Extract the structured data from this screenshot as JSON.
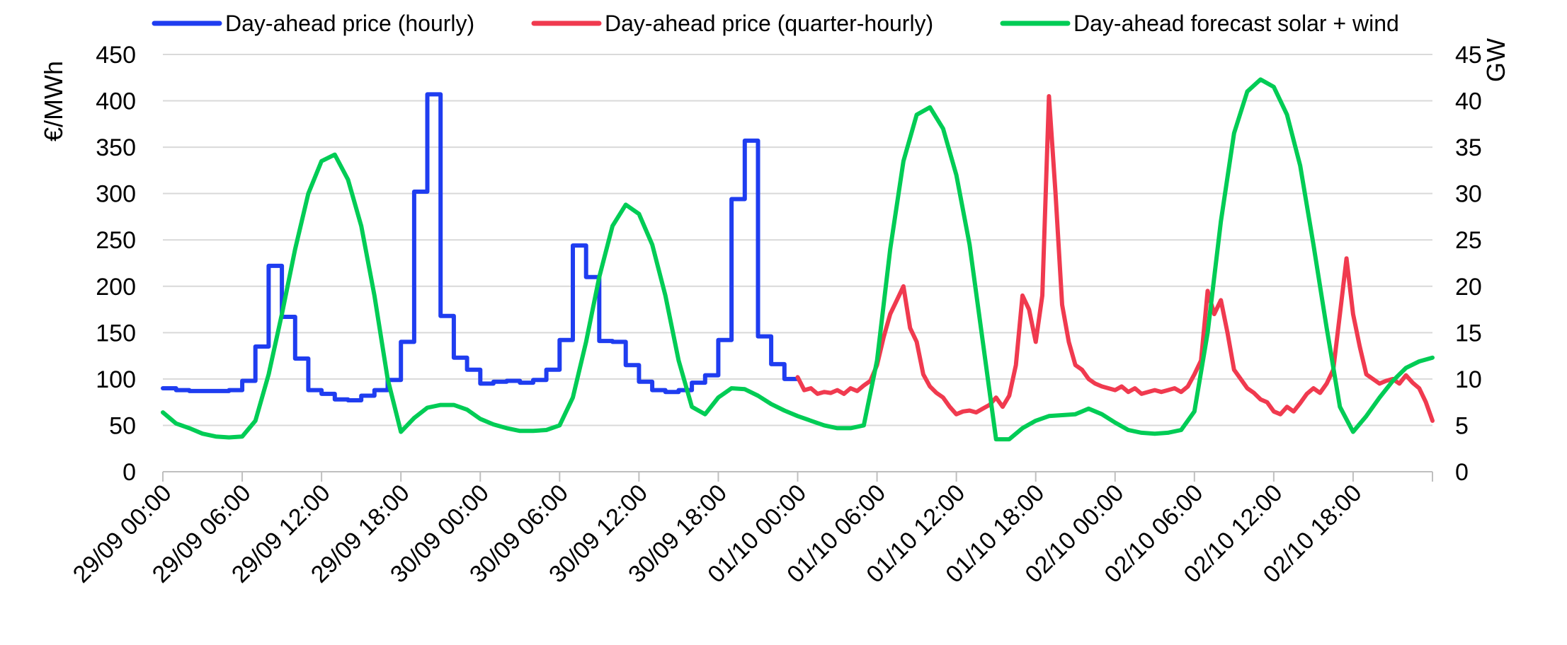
{
  "chart_data": {
    "type": "line",
    "legend_position": "top",
    "grid": true,
    "y_left": {
      "label": "€/MWh",
      "range": [
        0,
        450
      ],
      "ticks": [
        "0",
        "50",
        "100",
        "150",
        "200",
        "250",
        "300",
        "350",
        "400",
        "450"
      ]
    },
    "y_right": {
      "label": "GW",
      "range": [
        0,
        45
      ],
      "ticks": [
        "0",
        "5",
        "10",
        "15",
        "20",
        "25",
        "30",
        "35",
        "40",
        "45"
      ]
    },
    "x_range_hours": [
      0,
      96
    ],
    "x_tick_labels": [
      "29/09 00:00",
      "29/09 06:00",
      "29/09 12:00",
      "29/09 18:00",
      "30/09 00:00",
      "30/09 06:00",
      "30/09 12:00",
      "30/09 18:00",
      "01/10 00:00",
      "01/10 06:00",
      "01/10 12:00",
      "01/10 18:00",
      "02/10 00:00",
      "02/10 06:00",
      "02/10 12:00",
      "02/10 18:00"
    ],
    "series": [
      {
        "name": "Day-ahead price (hourly)",
        "color": "#1f3df0",
        "axis": "left",
        "step": true,
        "x": [
          0,
          1,
          2,
          3,
          4,
          5,
          6,
          7,
          8,
          9,
          10,
          11,
          12,
          13,
          14,
          15,
          16,
          17,
          18,
          19,
          20,
          21,
          22,
          23,
          24,
          25,
          26,
          27,
          28,
          29,
          30,
          31,
          32,
          33,
          34,
          35,
          36,
          37,
          38,
          39,
          40,
          41,
          42,
          43,
          44,
          45,
          46,
          47
        ],
        "y": [
          90,
          88,
          87,
          87,
          87,
          88,
          98,
          135,
          222,
          167,
          122,
          88,
          84,
          78,
          77,
          82,
          88,
          99,
          140,
          302,
          407,
          168,
          123,
          110,
          95,
          97,
          98,
          96,
          99,
          110,
          142,
          244,
          210,
          141,
          140,
          115,
          97,
          88,
          86,
          88,
          96,
          104,
          142,
          294,
          357,
          146,
          116,
          100
        ]
      },
      {
        "name": "Day-ahead price (quarter-hourly)",
        "color": "#f03a4f",
        "axis": "left",
        "x": [
          48,
          48.5,
          49,
          49.5,
          50,
          50.5,
          51,
          51.5,
          52,
          52.5,
          53,
          53.5,
          54,
          54.5,
          55,
          55.5,
          56,
          56.5,
          57,
          57.5,
          58,
          58.5,
          59,
          59.5,
          60,
          60.5,
          61,
          61.5,
          62,
          62.5,
          63,
          63.5,
          64,
          64.5,
          65,
          65.5,
          66,
          66.5,
          67,
          67.5,
          68,
          68.5,
          69,
          69.5,
          70,
          70.5,
          71,
          71.5,
          72,
          72.5,
          73,
          73.5,
          74,
          74.5,
          75,
          75.5,
          76,
          76.5,
          77,
          77.5,
          78,
          78.5,
          79,
          79.5,
          80,
          80.5,
          81,
          81.5,
          82,
          82.5,
          83,
          83.5,
          84,
          84.5,
          85,
          85.5,
          86,
          86.5,
          87,
          87.5,
          88,
          88.5,
          89,
          89.5,
          90,
          90.5,
          91,
          91.5,
          92,
          92.5,
          93,
          93.5,
          94,
          94.5,
          95,
          95.5,
          96
        ],
        "y": [
          102,
          88,
          90,
          84,
          86,
          85,
          88,
          84,
          90,
          87,
          93,
          98,
          115,
          145,
          170,
          185,
          200,
          155,
          140,
          105,
          92,
          85,
          80,
          70,
          62,
          65,
          66,
          64,
          68,
          72,
          80,
          70,
          82,
          115,
          190,
          175,
          140,
          190,
          405,
          300,
          180,
          140,
          115,
          110,
          100,
          95,
          92,
          90,
          88,
          92,
          86,
          90,
          84,
          86,
          88,
          86,
          88,
          90,
          86,
          92,
          105,
          120,
          195,
          170,
          185,
          150,
          110,
          100,
          90,
          85,
          78,
          75,
          65,
          62,
          70,
          65,
          74,
          84,
          90,
          85,
          95,
          110,
          170,
          230,
          170,
          135,
          105,
          100,
          95,
          98,
          100,
          95,
          104,
          96,
          90,
          75,
          55
        ]
      },
      {
        "name": "Day-ahead forecast solar + wind",
        "color": "#00cc55",
        "axis": "right",
        "x": [
          0,
          1,
          2,
          3,
          4,
          5,
          6,
          7,
          8,
          9,
          10,
          11,
          12,
          13,
          14,
          15,
          16,
          17,
          18,
          19,
          20,
          21,
          22,
          23,
          24,
          25,
          26,
          27,
          28,
          29,
          30,
          31,
          32,
          33,
          34,
          35,
          36,
          37,
          38,
          39,
          40,
          41,
          42,
          43,
          44,
          45,
          46,
          47,
          48,
          49,
          50,
          51,
          52,
          53,
          54,
          55,
          56,
          57,
          58,
          59,
          60,
          61,
          62,
          63,
          64,
          65,
          66,
          67,
          68,
          69,
          70,
          71,
          72,
          73,
          74,
          75,
          76,
          77,
          78,
          79,
          80,
          81,
          82,
          83,
          84,
          85,
          86,
          87,
          88,
          89,
          90,
          91,
          92,
          93,
          94,
          95,
          96
        ],
        "y": [
          6.4,
          5.2,
          4.7,
          4.1,
          3.8,
          3.7,
          3.8,
          5.5,
          10.5,
          17,
          24,
          30,
          33.5,
          34.2,
          31.5,
          26.5,
          19,
          10,
          4.3,
          5.8,
          6.9,
          7.2,
          7.2,
          6.7,
          5.7,
          5.1,
          4.7,
          4.4,
          4.4,
          4.5,
          5,
          8,
          14,
          21,
          26.5,
          28.8,
          27.8,
          24.5,
          19,
          12,
          7,
          6.2,
          8,
          9,
          8.9,
          8.2,
          7.3,
          6.6,
          6,
          5.5,
          5,
          4.7,
          4.7,
          5,
          12,
          24,
          33.5,
          38.5,
          39.3,
          37,
          32,
          24.5,
          14,
          3.5,
          3.5,
          4.7,
          5.5,
          6,
          6.1,
          6.2,
          6.8,
          6.2,
          5.3,
          4.5,
          4.2,
          4.1,
          4.2,
          4.5,
          6.5,
          15,
          27,
          36.5,
          41,
          42.3,
          41.5,
          38.5,
          33,
          24.5,
          15.5,
          7,
          4.3,
          6,
          8,
          9.8,
          11.2,
          11.9,
          12.3
        ]
      }
    ]
  }
}
